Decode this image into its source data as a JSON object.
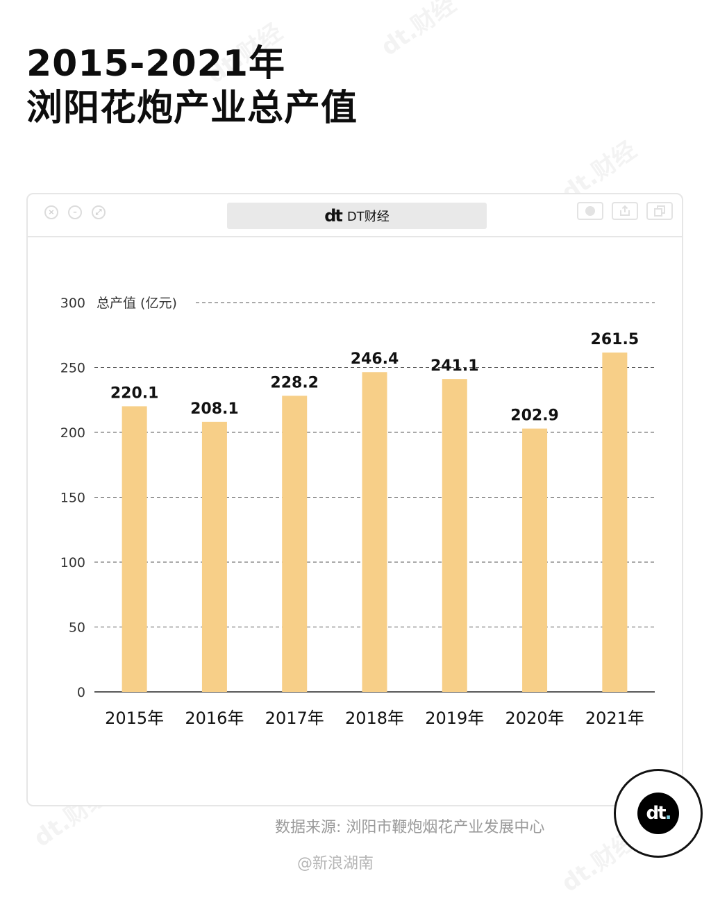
{
  "title": {
    "line1": "2015-2021年",
    "line2": "浏阳花炮产业总产值"
  },
  "watermark": "dt.财经",
  "window": {
    "address_logo": "dt",
    "address_text": "DT财经"
  },
  "colors": {
    "bar": "#f7cf88",
    "grid": "#555555",
    "axis": "#222222"
  },
  "chart_data": {
    "type": "bar",
    "categories": [
      "2015年",
      "2016年",
      "2017年",
      "2018年",
      "2019年",
      "2020年",
      "2021年"
    ],
    "values": [
      220.1,
      208.1,
      228.2,
      246.4,
      241.1,
      202.9,
      261.5
    ],
    "ylabel": "总产值 (亿元)",
    "ylim": [
      0,
      300
    ],
    "yticks": [
      0,
      50,
      100,
      150,
      200,
      250,
      300
    ],
    "grid": "dashed horizontal"
  },
  "source": "数据来源: 浏阳市鞭炮烟花产业发展中心",
  "weibo": "@新浪湖南",
  "badge": {
    "logo": "dt"
  }
}
